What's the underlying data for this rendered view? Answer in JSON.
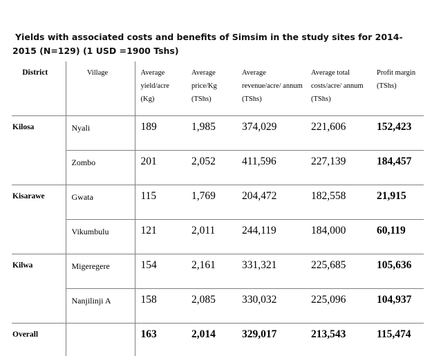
{
  "title": {
    "line1": "Yields with associated costs and benefits of Simsim in the study sites for 2014-",
    "line2": "2015  (N=129)  (1 USD =1900 Tshs)"
  },
  "headers": {
    "district": "District",
    "village": "Village",
    "yield": "Average yield/acre (Kg)",
    "price": "Average price/Kg (TShs)",
    "revenue": "Average revenue/acre/ annum (TShs)",
    "costs": "Average total costs/acre/ annum (TShs)",
    "profit": "Profit margin (TShs)"
  },
  "rows": [
    {
      "district": "Kilosa",
      "village": "Nyali",
      "yield": "189",
      "price": "1,985",
      "revenue": "374,029",
      "costs": "221,606",
      "profit": "152,423"
    },
    {
      "district": "",
      "village": "Zombo",
      "yield": "201",
      "price": "2,052",
      "revenue": "411,596",
      "costs": "227,139",
      "profit": "184,457"
    },
    {
      "district": "Kisarawe",
      "village": "Gwata",
      "yield": "115",
      "price": "1,769",
      "revenue": "204,472",
      "costs": "182,558",
      "profit": "21,915"
    },
    {
      "district": "",
      "village": "Vikumbulu",
      "yield": "121",
      "price": "2,011",
      "revenue": "244,119",
      "costs": "184,000",
      "profit": "60,119"
    },
    {
      "district": "Kilwa",
      "village": "Migeregere",
      "yield": "154",
      "price": "2,161",
      "revenue": "331,321",
      "costs": "225,685",
      "profit": "105,636"
    },
    {
      "district": "",
      "village": "Nanjilinji A",
      "yield": "158",
      "price": "2,085",
      "revenue": "330,032",
      "costs": "225,096",
      "profit": "104,937"
    }
  ],
  "overall": {
    "label": "Overall",
    "village": "",
    "yield": "163",
    "price": "2,014",
    "revenue": "329,017",
    "costs": "213,543",
    "profit": "115,474"
  }
}
